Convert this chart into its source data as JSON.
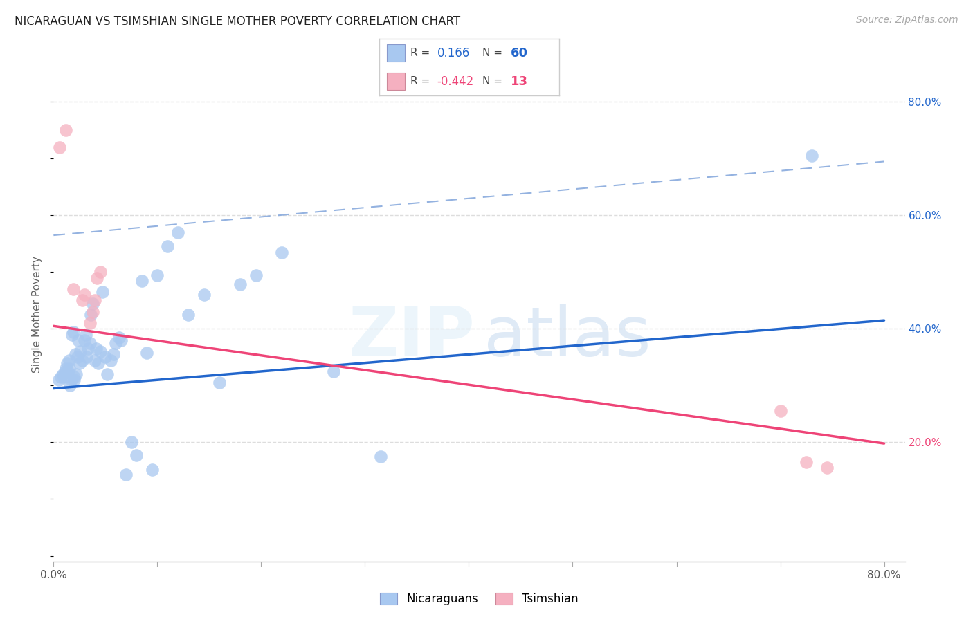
{
  "title": "NICARAGUAN VS TSIMSHIAN SINGLE MOTHER POVERTY CORRELATION CHART",
  "source": "Source: ZipAtlas.com",
  "ylabel": "Single Mother Poverty",
  "nicaraguan_R": "0.166",
  "nicaraguan_N": "60",
  "tsimshian_R": "-0.442",
  "tsimshian_N": "13",
  "xlim": [
    0.0,
    0.82
  ],
  "ylim": [
    -0.01,
    0.86
  ],
  "yticks_right": [
    0.2,
    0.4,
    0.6,
    0.8
  ],
  "ytick_labels": [
    "20.0%",
    "40.0%",
    "60.0%",
    "80.0%"
  ],
  "xtick_positions": [
    0.0,
    0.1,
    0.2,
    0.3,
    0.4,
    0.5,
    0.6,
    0.7,
    0.8
  ],
  "xtick_show_labels": [
    true,
    false,
    false,
    false,
    false,
    false,
    false,
    false,
    true
  ],
  "xtick_label_values": [
    "0.0%",
    "",
    "",
    "",
    "",
    "",
    "",
    "",
    "80.0%"
  ],
  "blue_scatter_color": "#a8c8f0",
  "pink_scatter_color": "#f5b0c0",
  "blue_line_color": "#2266cc",
  "pink_line_color": "#ee4477",
  "blue_dash_color": "#88aadd",
  "right_tick_color_blue": "#2266cc",
  "right_tick_color_pink": "#ee4477",
  "grid_color": "#dddddd",
  "background_color": "#ffffff",
  "blue_line_x0": 0.0,
  "blue_line_y0": 0.295,
  "blue_line_x1": 0.8,
  "blue_line_y1": 0.415,
  "pink_line_x0": 0.0,
  "pink_line_y0": 0.405,
  "pink_line_x1": 0.8,
  "pink_line_y1": 0.198,
  "dash_line_x0": 0.0,
  "dash_line_y0": 0.565,
  "dash_line_x1": 0.8,
  "dash_line_y1": 0.695,
  "nicaraguan_x": [
    0.005,
    0.007,
    0.009,
    0.01,
    0.011,
    0.012,
    0.013,
    0.014,
    0.015,
    0.015,
    0.016,
    0.017,
    0.018,
    0.019,
    0.02,
    0.02,
    0.021,
    0.022,
    0.023,
    0.024,
    0.025,
    0.026,
    0.028,
    0.03,
    0.031,
    0.032,
    0.033,
    0.035,
    0.036,
    0.038,
    0.04,
    0.041,
    0.043,
    0.045,
    0.047,
    0.05,
    0.052,
    0.055,
    0.058,
    0.06,
    0.063,
    0.065,
    0.07,
    0.075,
    0.08,
    0.085,
    0.09,
    0.095,
    0.1,
    0.11,
    0.12,
    0.13,
    0.145,
    0.16,
    0.18,
    0.195,
    0.22,
    0.27,
    0.315,
    0.73
  ],
  "nicaraguan_y": [
    0.31,
    0.315,
    0.32,
    0.315,
    0.325,
    0.33,
    0.34,
    0.325,
    0.33,
    0.345,
    0.3,
    0.31,
    0.39,
    0.395,
    0.31,
    0.315,
    0.355,
    0.32,
    0.35,
    0.38,
    0.34,
    0.36,
    0.345,
    0.38,
    0.39,
    0.35,
    0.365,
    0.375,
    0.425,
    0.445,
    0.345,
    0.365,
    0.34,
    0.36,
    0.465,
    0.35,
    0.32,
    0.345,
    0.355,
    0.375,
    0.385,
    0.38,
    0.143,
    0.2,
    0.178,
    0.485,
    0.358,
    0.152,
    0.495,
    0.545,
    0.57,
    0.425,
    0.46,
    0.305,
    0.478,
    0.495,
    0.535,
    0.325,
    0.175,
    0.705
  ],
  "tsimshian_x": [
    0.006,
    0.012,
    0.019,
    0.028,
    0.03,
    0.035,
    0.038,
    0.04,
    0.042,
    0.045,
    0.7,
    0.725,
    0.745
  ],
  "tsimshian_y": [
    0.72,
    0.75,
    0.47,
    0.45,
    0.46,
    0.41,
    0.43,
    0.45,
    0.49,
    0.5,
    0.255,
    0.165,
    0.155
  ]
}
